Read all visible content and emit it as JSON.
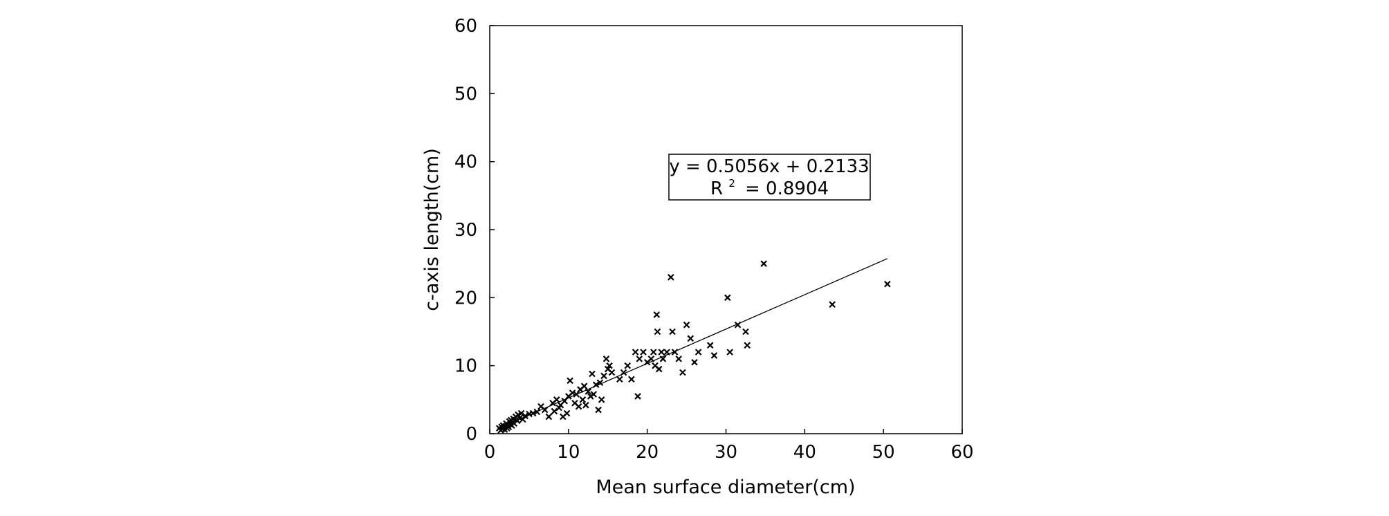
{
  "chart_data": {
    "type": "scatter",
    "xlabel": "Mean surface diameter(cm)",
    "ylabel": "c-axis length(cm)",
    "xlim": [
      0,
      60
    ],
    "ylim": [
      0,
      60
    ],
    "xticks": [
      0,
      10,
      20,
      30,
      40,
      50,
      60
    ],
    "yticks": [
      0,
      10,
      20,
      30,
      40,
      50,
      60
    ],
    "grid": false,
    "marker": "x",
    "marker_color": "#000000",
    "trendline": {
      "type": "linear",
      "slope": 0.5056,
      "intercept": 0.2133,
      "x_range": [
        1,
        50.5
      ],
      "equation_label": "y = 0.5056x + 0.2133",
      "r2_label": "R² = 0.8904",
      "r2_prefix": "R",
      "r2_sup": "2",
      "r2_value_text": "= 0.8904"
    },
    "points": [
      [
        1.2,
        0.8
      ],
      [
        1.4,
        0.5
      ],
      [
        1.5,
        1.0
      ],
      [
        1.6,
        0.7
      ],
      [
        1.7,
        1.2
      ],
      [
        1.8,
        0.9
      ],
      [
        1.9,
        0.6
      ],
      [
        2.0,
        1.1
      ],
      [
        2.1,
        1.5
      ],
      [
        2.2,
        0.8
      ],
      [
        2.3,
        1.3
      ],
      [
        2.4,
        1.0
      ],
      [
        2.5,
        1.8
      ],
      [
        2.6,
        1.4
      ],
      [
        2.7,
        2.0
      ],
      [
        2.8,
        1.2
      ],
      [
        2.9,
        1.7
      ],
      [
        3.0,
        2.2
      ],
      [
        3.1,
        1.5
      ],
      [
        3.3,
        2.5
      ],
      [
        3.5,
        1.9
      ],
      [
        3.6,
        2.8
      ],
      [
        3.8,
        2.3
      ],
      [
        4.0,
        3.0
      ],
      [
        4.2,
        2.1
      ],
      [
        4.5,
        2.6
      ],
      [
        5.0,
        2.9
      ],
      [
        5.5,
        3.0
      ],
      [
        6.0,
        3.2
      ],
      [
        6.5,
        4.0
      ],
      [
        7.0,
        3.5
      ],
      [
        7.5,
        2.5
      ],
      [
        8.0,
        4.5
      ],
      [
        8.2,
        3.3
      ],
      [
        8.5,
        5.0
      ],
      [
        8.8,
        3.8
      ],
      [
        9.0,
        4.2
      ],
      [
        9.3,
        2.5
      ],
      [
        9.5,
        4.8
      ],
      [
        9.8,
        3.0
      ],
      [
        10.0,
        5.5
      ],
      [
        10.2,
        7.8
      ],
      [
        10.5,
        6.0
      ],
      [
        10.8,
        4.5
      ],
      [
        11.0,
        5.8
      ],
      [
        11.3,
        4.0
      ],
      [
        11.5,
        6.5
      ],
      [
        11.8,
        5.0
      ],
      [
        12.0,
        7.0
      ],
      [
        12.2,
        4.2
      ],
      [
        12.5,
        6.2
      ],
      [
        12.8,
        5.5
      ],
      [
        13.0,
        8.8
      ],
      [
        13.2,
        5.8
      ],
      [
        13.5,
        7.2
      ],
      [
        13.8,
        3.5
      ],
      [
        14.0,
        7.5
      ],
      [
        14.2,
        5.0
      ],
      [
        14.5,
        8.5
      ],
      [
        14.8,
        11.0
      ],
      [
        15.0,
        9.5
      ],
      [
        15.2,
        10.0
      ],
      [
        15.5,
        9.0
      ],
      [
        16.5,
        8.0
      ],
      [
        17.0,
        9.0
      ],
      [
        17.5,
        10.0
      ],
      [
        18.0,
        8.0
      ],
      [
        18.5,
        12.0
      ],
      [
        18.8,
        5.5
      ],
      [
        19.0,
        11.0
      ],
      [
        19.5,
        12.0
      ],
      [
        20.0,
        10.5
      ],
      [
        20.5,
        11.0
      ],
      [
        20.8,
        12.0
      ],
      [
        21.0,
        10.0
      ],
      [
        21.2,
        17.5
      ],
      [
        21.3,
        15.0
      ],
      [
        21.5,
        9.5
      ],
      [
        21.8,
        12.0
      ],
      [
        22.0,
        11.0
      ],
      [
        22.5,
        12.0
      ],
      [
        23.0,
        23.0
      ],
      [
        23.2,
        15.0
      ],
      [
        23.5,
        12.0
      ],
      [
        24.0,
        11.0
      ],
      [
        24.5,
        9.0
      ],
      [
        25.0,
        16.0
      ],
      [
        25.5,
        14.0
      ],
      [
        26.0,
        10.5
      ],
      [
        26.5,
        12.0
      ],
      [
        28.0,
        13.0
      ],
      [
        28.5,
        11.5
      ],
      [
        30.2,
        20.0
      ],
      [
        30.5,
        12.0
      ],
      [
        31.5,
        16.0
      ],
      [
        32.5,
        15.0
      ],
      [
        32.7,
        13.0
      ],
      [
        34.8,
        25.0
      ],
      [
        43.5,
        19.0
      ],
      [
        50.5,
        22.0
      ]
    ]
  }
}
